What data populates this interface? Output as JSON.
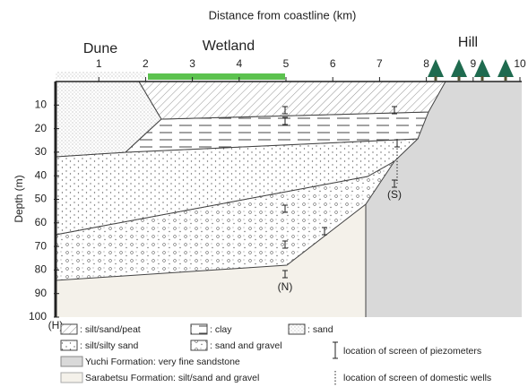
{
  "header": {
    "title": "Distance from coastline (km)"
  },
  "regions": [
    "Dune",
    "Wetland",
    "Hill"
  ],
  "x_axis": {
    "ticks": [
      "1",
      "2",
      "3",
      "4",
      "5",
      "6",
      "7",
      "8",
      "9",
      "10"
    ]
  },
  "y_axis": {
    "label": "Depth (m)",
    "ticks": [
      "10",
      "20",
      "30",
      "40",
      "50",
      "60",
      "70",
      "80",
      "90",
      "100"
    ]
  },
  "well_labels": [
    "(S)",
    "(N)",
    "(H)"
  ],
  "legend": {
    "silt_sand_peat": ": silt/sand/peat",
    "clay": ": clay",
    "sand": ": sand",
    "silt_silty_sand": ": silt/silty sand",
    "sand_gravel": ": sand and gravel",
    "yuchi": "Yuchi Formation: very fine sandstone",
    "sarabetsu": "Sarabetsu Formation: silt/sand and gravel",
    "piezometers": "location of screen of piezometers",
    "domestic_wells": "location of screen of domestic wells"
  }
}
